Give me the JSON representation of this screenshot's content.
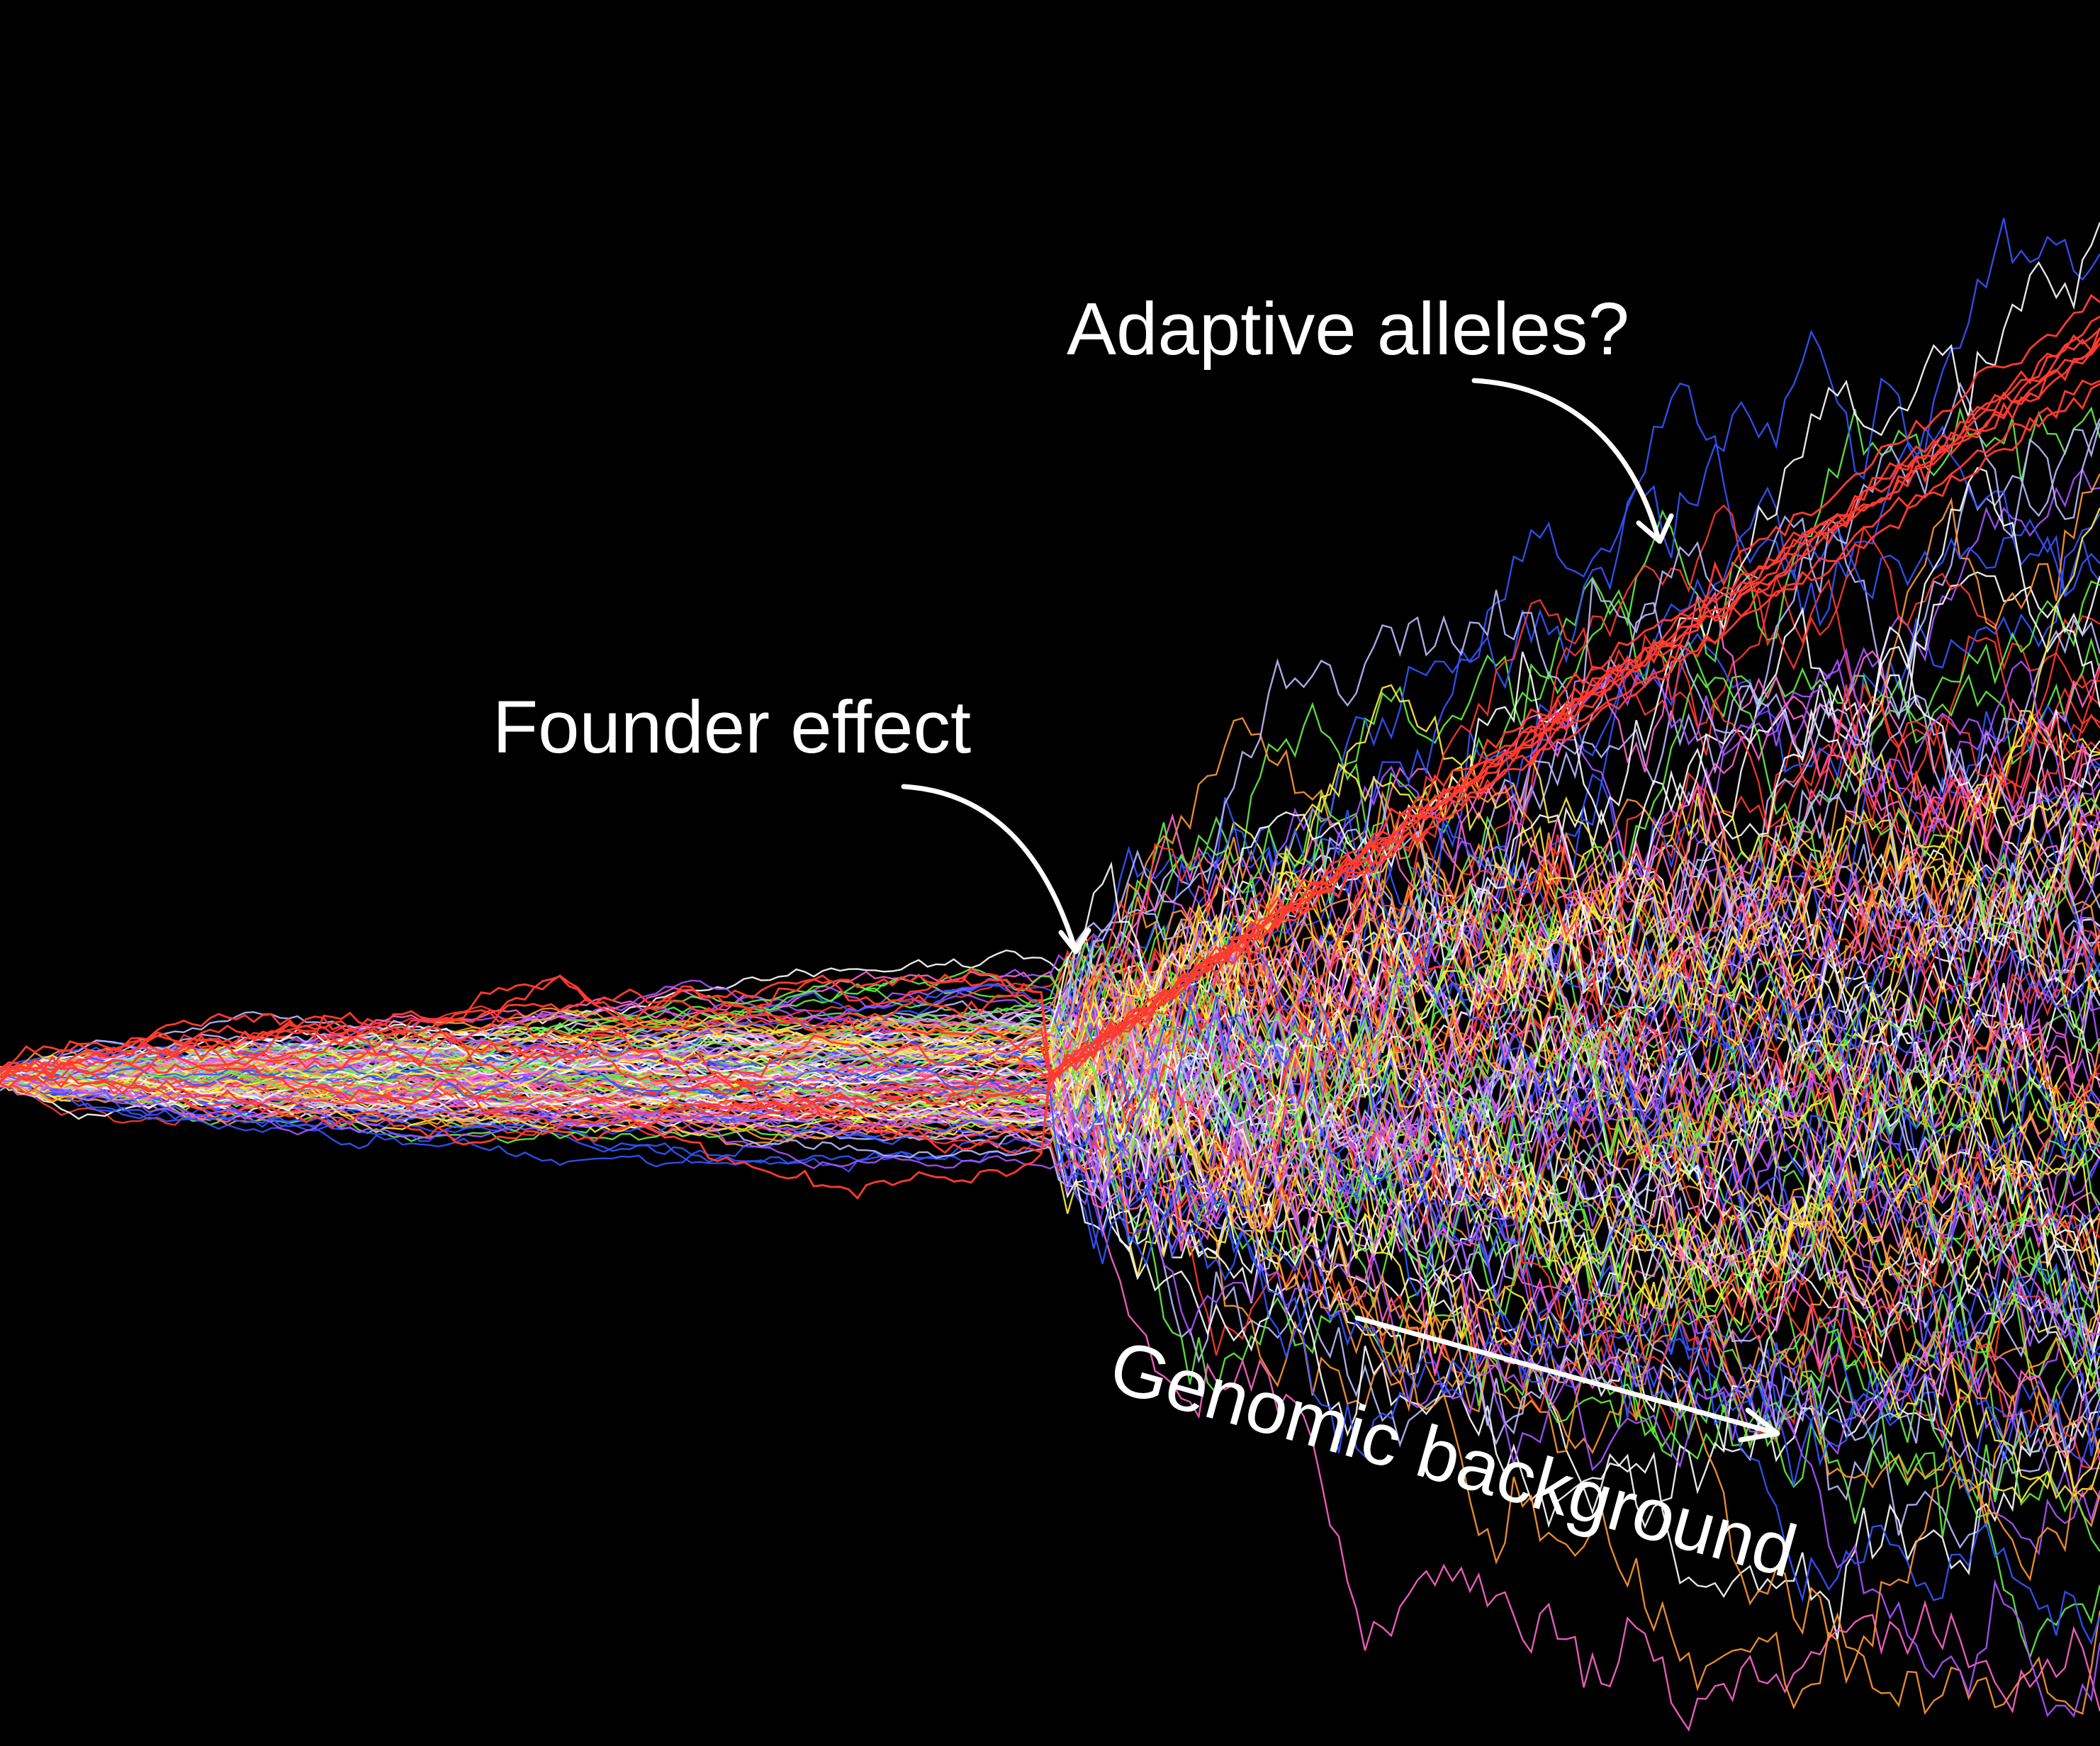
{
  "chart_data": {
    "type": "line",
    "title": "",
    "xlabel": "",
    "ylabel": "",
    "grid": false,
    "legend": "none",
    "background": "#000000",
    "x": [
      0,
      1
    ],
    "founder_event_x": 0.5,
    "series": [
      {
        "group": "genomic background",
        "count": 150,
        "colors": [
          "#ff3b30",
          "#3355ff",
          "#ffee44",
          "#66ee44",
          "#ff9933",
          "#aa55ff",
          "#ffffff",
          "#ff66cc",
          "#bbbbff"
        ],
        "start": 0,
        "spread_before_founder": 0.03,
        "spread_after_founder": 0.2,
        "trend": 0
      },
      {
        "group": "adaptive alleles",
        "count": 9,
        "colors": [
          "#ff3b30"
        ],
        "start": 0,
        "end": 0.55
      }
    ],
    "annotations": [
      {
        "name": "adaptive",
        "text": "Adaptive alleles?"
      },
      {
        "name": "founder",
        "text": "Founder effect"
      },
      {
        "name": "genomic",
        "text": "Genomic background"
      }
    ]
  }
}
